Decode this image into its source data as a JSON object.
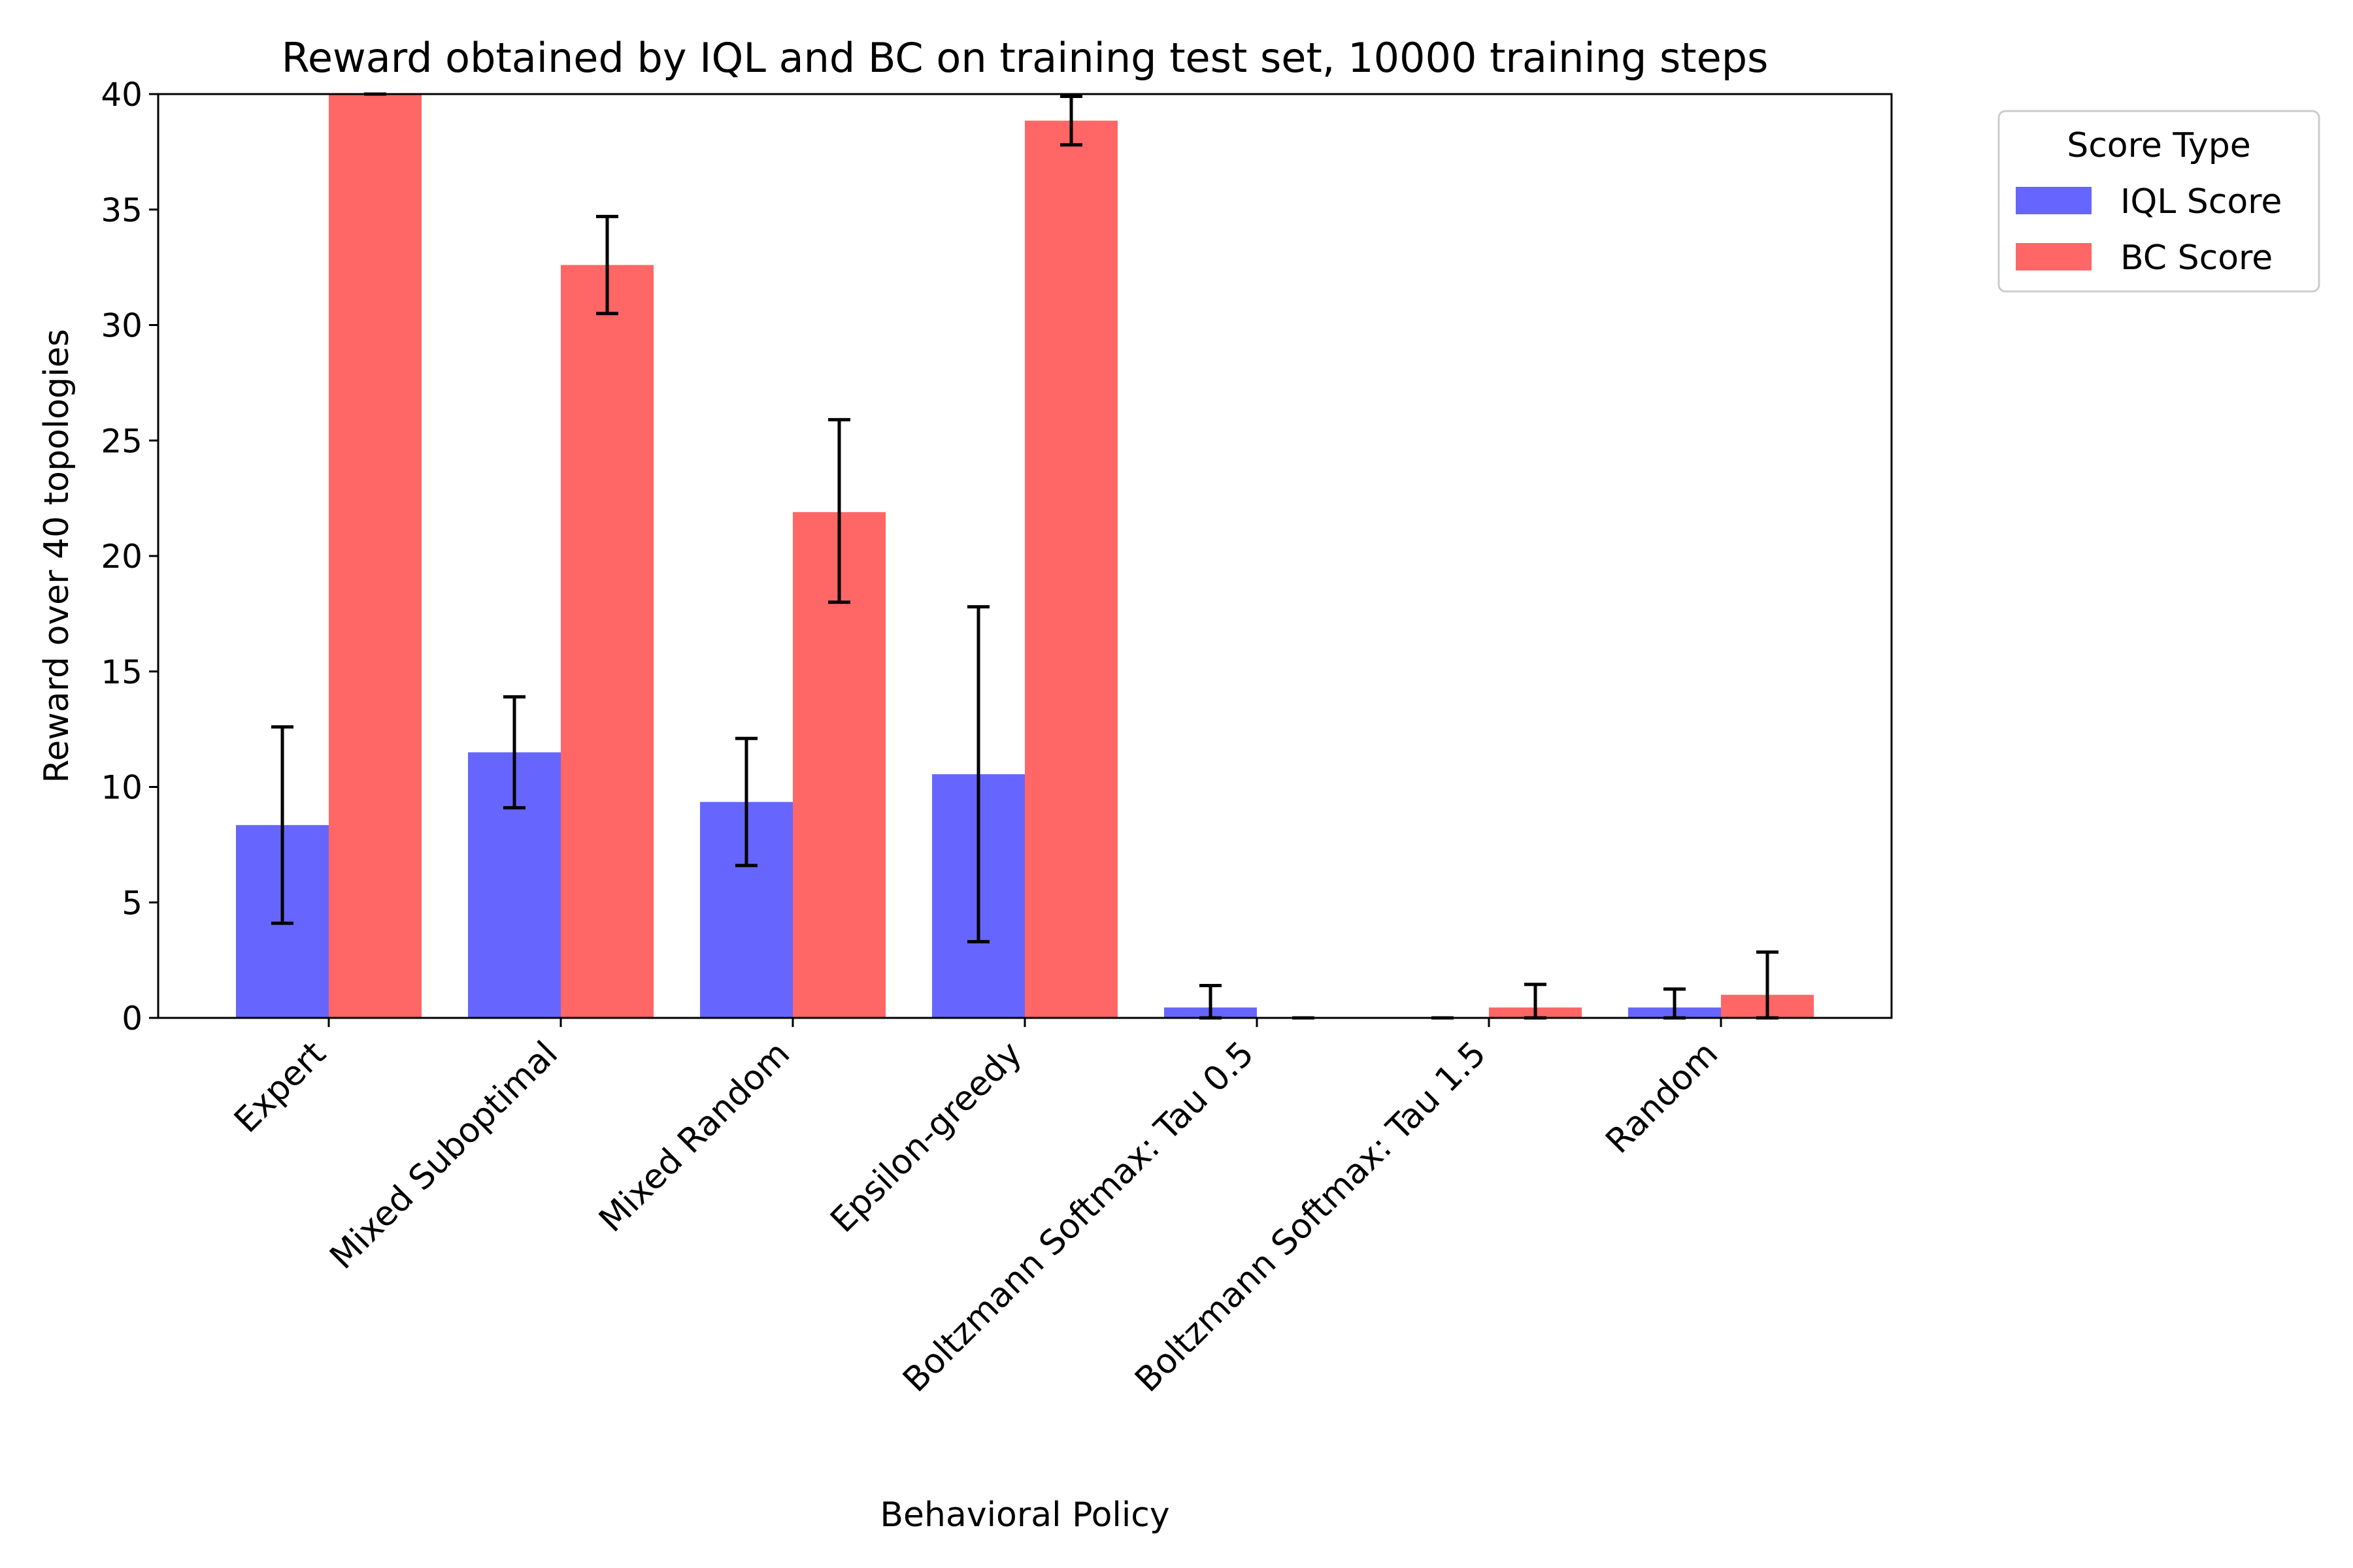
{
  "chart_data": {
    "type": "bar",
    "title": "Reward obtained by IQL and BC on training test set, 10000 training steps",
    "xlabel": "Behavioral Policy",
    "ylabel": "Reward over 40 topologies",
    "ylim": [
      0,
      40
    ],
    "yticks": [
      0,
      5,
      10,
      15,
      20,
      25,
      30,
      35,
      40
    ],
    "categories": [
      "Expert",
      "Mixed Suboptimal",
      "Mixed Random",
      "Epsilon-greedy",
      "Boltzmann Softmax: Tau 0.5",
      "Boltzmann Softmax: Tau 1.5",
      "Random"
    ],
    "series": [
      {
        "name": "IQL Score",
        "color": "#6666ff",
        "values": [
          8.35,
          11.5,
          9.35,
          10.55,
          0.45,
          0.0,
          0.45
        ],
        "error_low": [
          4.1,
          9.1,
          6.6,
          3.3,
          0.0,
          0.0,
          0.0
        ],
        "error_high": [
          12.6,
          13.9,
          12.1,
          17.8,
          1.4,
          0.0,
          1.25
        ]
      },
      {
        "name": "BC Score",
        "color": "#ff6666",
        "values": [
          40.0,
          32.6,
          21.9,
          38.85,
          0.0,
          0.45,
          1.0
        ],
        "error_low": [
          40.0,
          30.5,
          18.0,
          37.8,
          0.0,
          0.0,
          0.0
        ],
        "error_high": [
          40.0,
          34.7,
          25.9,
          39.9,
          0.0,
          1.45,
          2.85
        ]
      }
    ],
    "legend": {
      "title": "Score Type",
      "placement": "outside-top-right"
    },
    "grid": false
  }
}
